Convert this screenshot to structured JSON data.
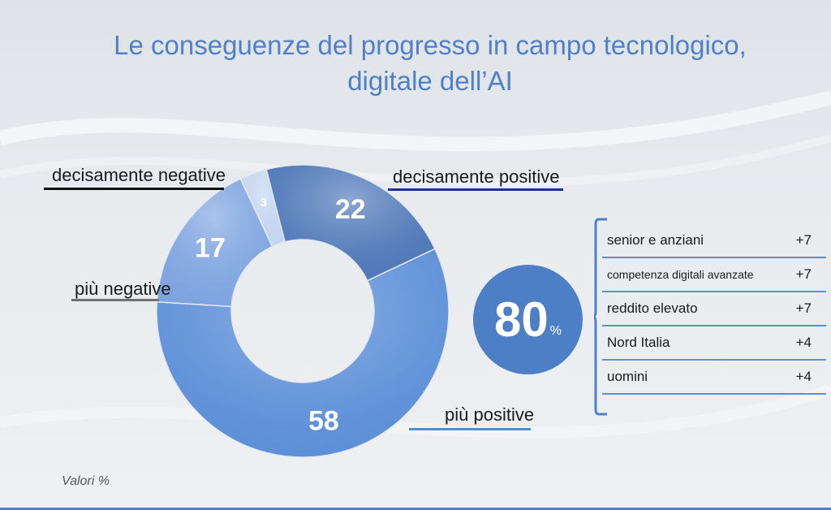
{
  "chart_data": {
    "type": "pie",
    "title_line1": "Le conseguenze del progresso in campo tecnologico,",
    "title_line2": "digitale dell’AI",
    "slices": [
      {
        "label": "più positive",
        "value": 58,
        "color": "#5c8fd8"
      },
      {
        "label": "più negative",
        "value": 17,
        "color": "#7ea4e0"
      },
      {
        "label": "decisamente negative",
        "value": 3,
        "color": "#c3d5f0"
      },
      {
        "label": "decisamente positive",
        "value": 22,
        "color": "#4f78b8"
      }
    ],
    "note": "Valori %"
  },
  "summary": {
    "value": "80",
    "unit": "%",
    "segments": [
      {
        "label": "senior e anziani",
        "delta": "+7"
      },
      {
        "label": "competenza digitali avanzate",
        "delta": "+7"
      },
      {
        "label": "reddito elevato",
        "delta": "+7"
      },
      {
        "label": "Nord Italia",
        "delta": "+4"
      },
      {
        "label": "uomini",
        "delta": "+4"
      }
    ]
  },
  "colors": {
    "line_positive": "#4f8fd0",
    "line_decisamente_positive": "#1f2f8a",
    "line_negative": "#707070",
    "line_decisamente_negative": "#111111"
  }
}
